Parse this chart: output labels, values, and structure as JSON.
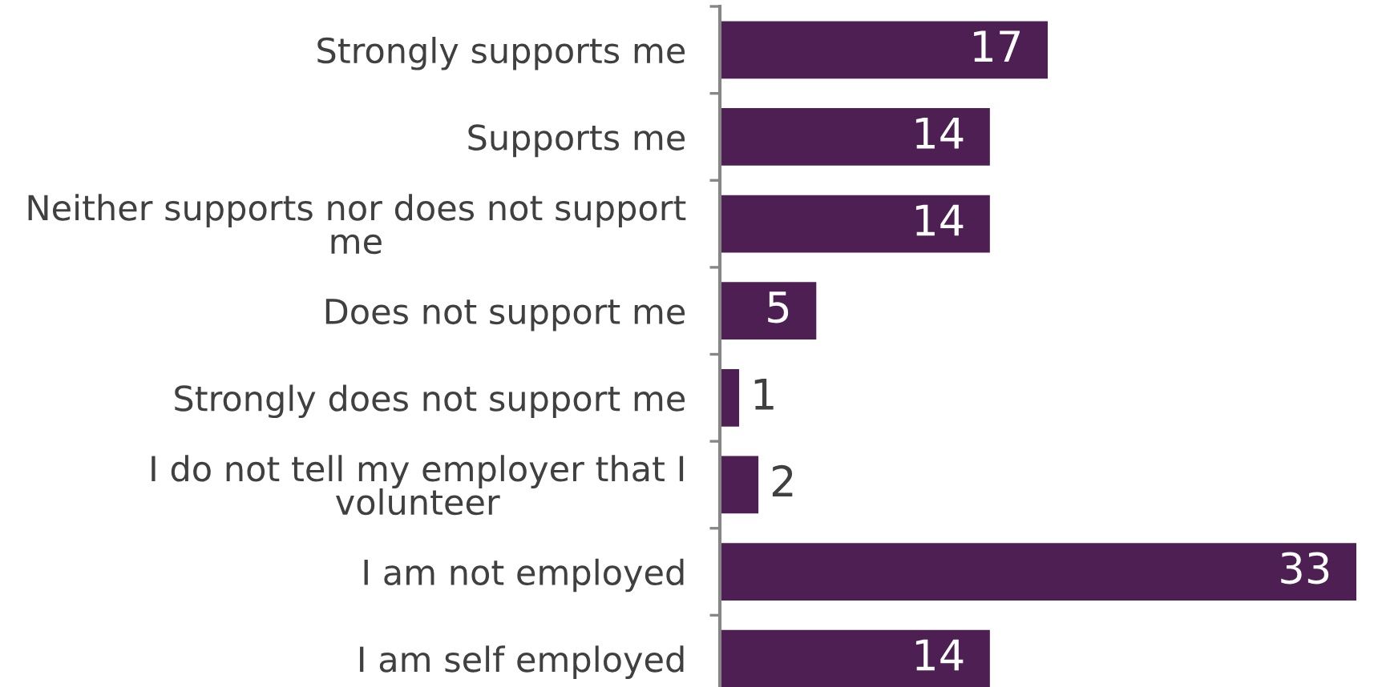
{
  "chart_data": {
    "type": "bar",
    "orientation": "horizontal",
    "categories": [
      "Strongly supports me",
      "Supports me",
      "Neither supports nor does not support me",
      "Does not support me",
      "Strongly does not support me",
      "I do not tell my employer that I volunteer",
      "I am not employed",
      "I am self employed"
    ],
    "values": [
      17,
      14,
      14,
      5,
      1,
      2,
      33,
      14
    ],
    "color": "#4d1f52",
    "data_labels": true,
    "tick_labels": "y"
  }
}
